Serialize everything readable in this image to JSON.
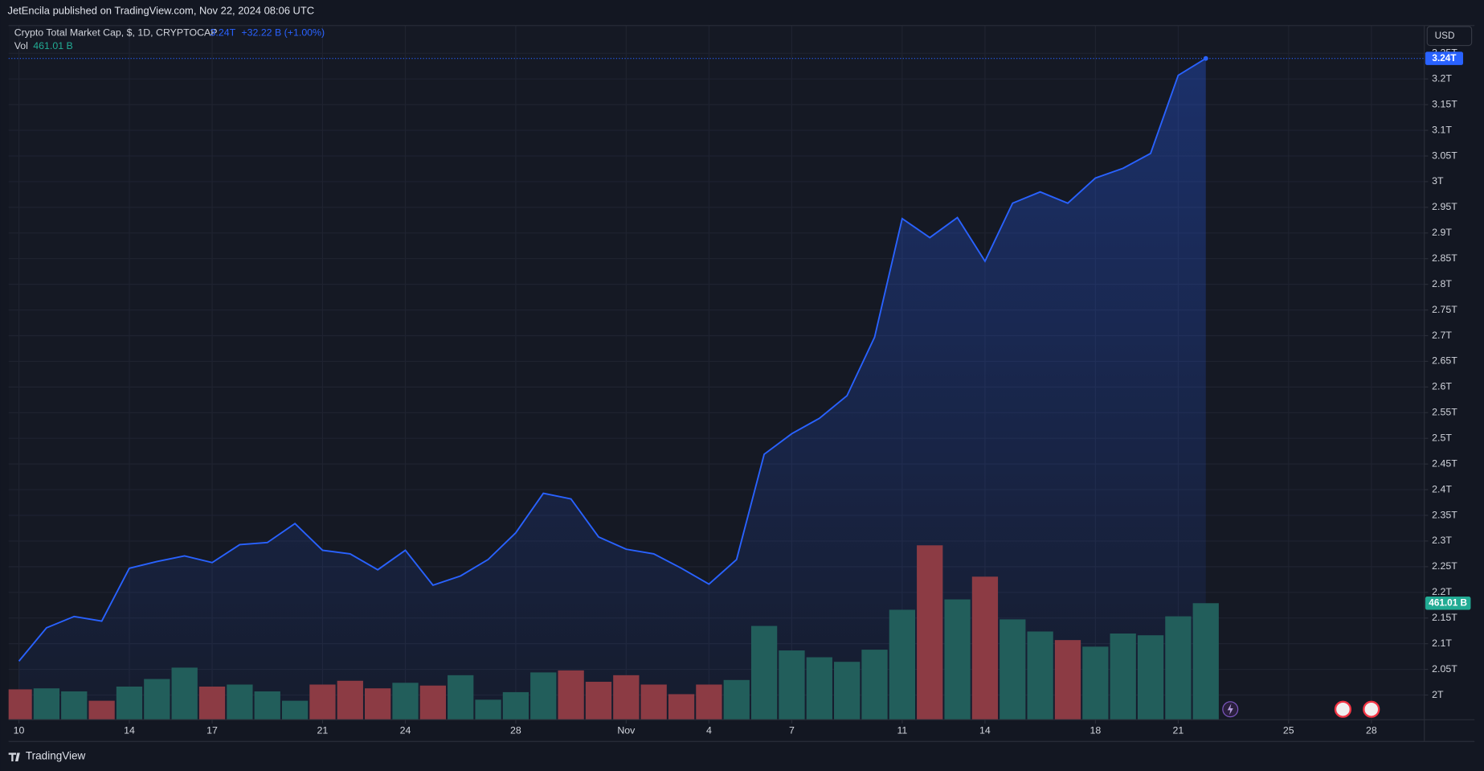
{
  "header": "JetEncila published on TradingView.com, Nov 22, 2024 08:06 UTC",
  "footer": "TradingView",
  "currency": "USD",
  "chart_data": {
    "type": "line",
    "legend_change": "+32.22 B (+1.00%)",
    "x": [
      "2024-10-10",
      "2024-10-11",
      "2024-10-12",
      "2024-10-13",
      "2024-10-14",
      "2024-10-15",
      "2024-10-16",
      "2024-10-17",
      "2024-10-18",
      "2024-10-19",
      "2024-10-20",
      "2024-10-21",
      "2024-10-22",
      "2024-10-23",
      "2024-10-24",
      "2024-10-25",
      "2024-10-26",
      "2024-10-27",
      "2024-10-28",
      "2024-10-29",
      "2024-10-30",
      "2024-10-31",
      "2024-11-01",
      "2024-11-02",
      "2024-11-03",
      "2024-11-04",
      "2024-11-05",
      "2024-11-06",
      "2024-11-07",
      "2024-11-08",
      "2024-11-09",
      "2024-11-10",
      "2024-11-11",
      "2024-11-12",
      "2024-11-13",
      "2024-11-14",
      "2024-11-15",
      "2024-11-16",
      "2024-11-17",
      "2024-11-18",
      "2024-11-19",
      "2024-11-20",
      "2024-11-21",
      "2024-11-22"
    ],
    "xlim": [
      "2024-10-09T15:00:00Z",
      "2024-11-29T22:00:00Z"
    ],
    "xticks": [
      {
        "value": "2024-10-10",
        "label": "10"
      },
      {
        "value": "2024-10-14",
        "label": "14"
      },
      {
        "value": "2024-10-17",
        "label": "17"
      },
      {
        "value": "2024-10-21",
        "label": "21"
      },
      {
        "value": "2024-10-24",
        "label": "24"
      },
      {
        "value": "2024-10-28",
        "label": "28"
      },
      {
        "value": "2024-11-01",
        "label": "Nov"
      },
      {
        "value": "2024-11-04",
        "label": "4"
      },
      {
        "value": "2024-11-07",
        "label": "7"
      },
      {
        "value": "2024-11-11",
        "label": "11"
      },
      {
        "value": "2024-11-14",
        "label": "14"
      },
      {
        "value": "2024-11-18",
        "label": "18"
      },
      {
        "value": "2024-11-21",
        "label": "21"
      },
      {
        "value": "2024-11-25",
        "label": "25"
      },
      {
        "value": "2024-11-28",
        "label": "28"
      }
    ],
    "ylim": [
      1.952,
      3.304
    ],
    "yticks": [
      {
        "value": 2,
        "label": "2T"
      },
      {
        "value": 2.05,
        "label": "2.05T"
      },
      {
        "value": 2.1,
        "label": "2.1T"
      },
      {
        "value": 2.15,
        "label": "2.15T"
      },
      {
        "value": 2.2,
        "label": "2.2T"
      },
      {
        "value": 2.25,
        "label": "2.25T"
      },
      {
        "value": 2.3,
        "label": "2.3T"
      },
      {
        "value": 2.35,
        "label": "2.35T"
      },
      {
        "value": 2.4,
        "label": "2.4T"
      },
      {
        "value": 2.45,
        "label": "2.45T"
      },
      {
        "value": 2.5,
        "label": "2.5T"
      },
      {
        "value": 2.55,
        "label": "2.55T"
      },
      {
        "value": 2.6,
        "label": "2.6T"
      },
      {
        "value": 2.65,
        "label": "2.65T"
      },
      {
        "value": 2.7,
        "label": "2.7T"
      },
      {
        "value": 2.75,
        "label": "2.75T"
      },
      {
        "value": 2.8,
        "label": "2.8T"
      },
      {
        "value": 2.85,
        "label": "2.85T"
      },
      {
        "value": 2.9,
        "label": "2.9T"
      },
      {
        "value": 2.95,
        "label": "2.95T"
      },
      {
        "value": 3,
        "label": "3T"
      },
      {
        "value": 3.05,
        "label": "3.05T"
      },
      {
        "value": 3.1,
        "label": "3.1T"
      },
      {
        "value": 3.15,
        "label": "3.15T"
      },
      {
        "value": 3.2,
        "label": "3.2T"
      },
      {
        "value": 3.25,
        "label": "3.25T"
      }
    ],
    "y2lim": [
      0,
      2747
    ],
    "grid": true,
    "series": [
      {
        "name": "Crypto Total Market Cap, $, 1D, CRYPTOCAP",
        "type": "area",
        "color": "#2962ff",
        "values": [
          2.066,
          2.131,
          2.153,
          2.144,
          2.247,
          2.26,
          2.271,
          2.258,
          2.293,
          2.297,
          2.334,
          2.282,
          2.275,
          2.244,
          2.282,
          2.214,
          2.232,
          2.264,
          2.316,
          2.393,
          2.382,
          2.308,
          2.284,
          2.275,
          2.247,
          2.216,
          2.264,
          2.469,
          2.509,
          2.539,
          2.583,
          2.697,
          2.928,
          2.891,
          2.93,
          2.845,
          2.958,
          2.98,
          2.958,
          3.007,
          3.026,
          3.055,
          3.207,
          3.24
        ],
        "value_labels": [
          null,
          null,
          null,
          null,
          null,
          null,
          null,
          null,
          null,
          null,
          null,
          null,
          null,
          null,
          null,
          null,
          null,
          null,
          null,
          null,
          null,
          null,
          null,
          null,
          null,
          null,
          null,
          null,
          null,
          null,
          null,
          null,
          null,
          null,
          null,
          null,
          null,
          null,
          null,
          null,
          null,
          null,
          null,
          "3.24T"
        ]
      },
      {
        "name": "Vol",
        "type": "bar",
        "axis": "y2",
        "values": [
          120,
          124,
          112,
          75,
          131,
          161,
          206,
          131,
          139,
          112,
          75,
          139,
          154,
          124,
          146,
          135,
          176,
          79,
          109,
          187,
          195,
          150,
          176,
          139,
          101,
          139,
          157,
          371,
          274,
          247,
          229,
          277,
          435,
          690,
          476,
          566,
          397,
          349,
          315,
          289,
          341,
          334,
          409,
          461.01
        ],
        "colors": [
          "#8c3b44",
          "#225e5b",
          "#225e5b",
          "#8c3b44",
          "#225e5b",
          "#225e5b",
          "#225e5b",
          "#8c3b44",
          "#225e5b",
          "#225e5b",
          "#225e5b",
          "#8c3b44",
          "#8c3b44",
          "#8c3b44",
          "#225e5b",
          "#8c3b44",
          "#225e5b",
          "#225e5b",
          "#225e5b",
          "#225e5b",
          "#8c3b44",
          "#8c3b44",
          "#8c3b44",
          "#8c3b44",
          "#8c3b44",
          "#8c3b44",
          "#225e5b",
          "#225e5b",
          "#225e5b",
          "#225e5b",
          "#225e5b",
          "#225e5b",
          "#225e5b",
          "#8c3b44",
          "#225e5b",
          "#8c3b44",
          "#225e5b",
          "#225e5b",
          "#8c3b44",
          "#225e5b",
          "#225e5b",
          "#225e5b",
          "#225e5b",
          "#225e5b"
        ],
        "label_color": "#22ab94",
        "value_labels": [
          null,
          null,
          null,
          null,
          null,
          null,
          null,
          null,
          null,
          null,
          null,
          null,
          null,
          null,
          null,
          null,
          null,
          null,
          null,
          null,
          null,
          null,
          null,
          null,
          null,
          null,
          null,
          null,
          null,
          null,
          null,
          null,
          null,
          null,
          null,
          null,
          null,
          null,
          null,
          null,
          null,
          null,
          null,
          "461.01 B"
        ]
      }
    ]
  }
}
